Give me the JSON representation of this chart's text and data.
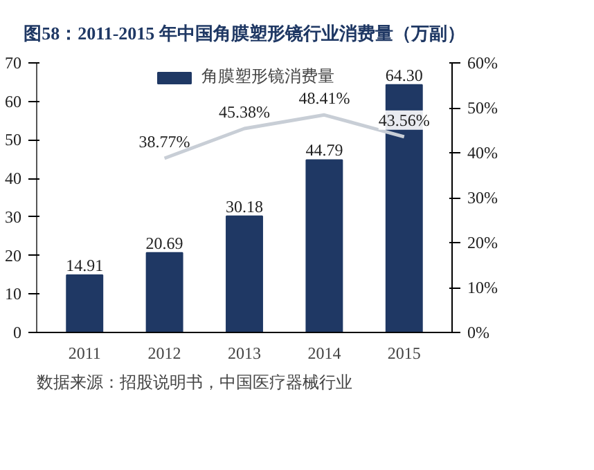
{
  "chart_data": {
    "type": "bar",
    "title": "图58：2011-2015 年中国角膜塑形镜行业消费量（万副）",
    "categories": [
      "2011",
      "2012",
      "2013",
      "2014",
      "2015"
    ],
    "series": [
      {
        "name": "角膜塑形镜消费量",
        "color": "#1f3864",
        "values": [
          14.91,
          20.69,
          30.18,
          44.79,
          64.3
        ],
        "value_labels": [
          "14.91",
          "20.69",
          "30.18",
          "44.79",
          "64.30"
        ]
      },
      {
        "type": "line",
        "axis": "y2",
        "color": "#c8ced6",
        "values": [
          null,
          38.77,
          45.38,
          48.41,
          43.56
        ],
        "value_labels": [
          null,
          "38.77%",
          "45.38%",
          "48.41%",
          "43.56%"
        ]
      }
    ],
    "ylim": [
      0,
      70
    ],
    "yticks": [
      0,
      10,
      20,
      30,
      40,
      50,
      60,
      70
    ],
    "y2lim": [
      0,
      60
    ],
    "y2ticks": [
      {
        "value": 0,
        "label": "0%"
      },
      {
        "value": 10,
        "label": "10%"
      },
      {
        "value": 20,
        "label": "20%"
      },
      {
        "value": 30,
        "label": "30%"
      },
      {
        "value": 40,
        "label": "40%"
      },
      {
        "value": 50,
        "label": "50%"
      },
      {
        "value": 60,
        "label": "60%"
      }
    ],
    "legend": "top",
    "grid": false,
    "marker": "none",
    "line_style": "solid",
    "annotations": [
      "数据来源：招股说明书，中国医疗器械行业"
    ]
  }
}
